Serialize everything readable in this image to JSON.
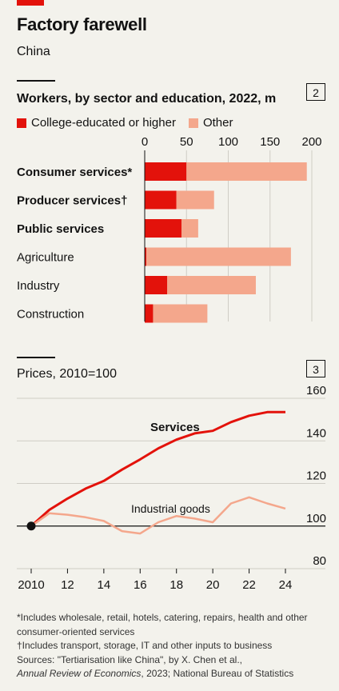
{
  "header": {
    "title": "Factory farewell",
    "subtitle": "China"
  },
  "colors": {
    "red": "#e3120b",
    "salmon": "#f4a78c",
    "text": "#121212",
    "grid": "#cfcdc5"
  },
  "chart_data": [
    {
      "type": "bar",
      "stacked": true,
      "orientation": "horizontal",
      "panel_number": "2",
      "title": "Workers, by sector and education, 2022, m",
      "categories": [
        "Consumer services*",
        "Producer services†",
        "Public services",
        "Agriculture",
        "Industry",
        "Construction"
      ],
      "bold_categories": [
        true,
        true,
        true,
        false,
        false,
        false
      ],
      "series": [
        {
          "name": "College-educated or higher",
          "values": [
            50,
            38,
            44,
            2,
            27,
            10
          ],
          "color": "#e3120b"
        },
        {
          "name": "Other",
          "values": [
            144,
            45,
            20,
            173,
            106,
            65
          ],
          "color": "#f4a78c"
        }
      ],
      "xlim": [
        0,
        200
      ],
      "xticks": [
        0,
        50,
        100,
        150,
        200
      ],
      "legend_position": "top-left"
    },
    {
      "type": "line",
      "panel_number": "3",
      "title": "Prices, 2010=100",
      "x": [
        2010,
        2011,
        2012,
        2013,
        2014,
        2015,
        2016,
        2017,
        2018,
        2019,
        2020,
        2021,
        2022,
        2023,
        2024
      ],
      "xtick_labels": [
        "2010",
        "12",
        "14",
        "16",
        "18",
        "20",
        "22",
        "24"
      ],
      "xtick_values": [
        2010,
        2012,
        2014,
        2016,
        2018,
        2020,
        2022,
        2024
      ],
      "series": [
        {
          "name": "Services",
          "values": [
            100,
            107.6,
            112.9,
            117.6,
            121.2,
            126.5,
            131.3,
            136.5,
            140.6,
            143.5,
            144.7,
            148.8,
            151.8,
            153.5,
            153.5
          ],
          "color": "#e3120b"
        },
        {
          "name": "Industrial goods",
          "values": [
            100,
            106,
            105.3,
            104.1,
            102.4,
            97.6,
            96.5,
            101.8,
            104.7,
            103.5,
            101.8,
            110.6,
            113.5,
            110.6,
            108.2
          ],
          "color": "#f4a78c"
        }
      ],
      "ylim": [
        80,
        160
      ],
      "yticks": [
        80,
        100,
        120,
        140,
        160
      ],
      "yaxis_side": "right",
      "start_marker": {
        "x": 2010,
        "y": 100
      }
    }
  ],
  "footnotes": {
    "note1": "*Includes wholesale, retail, hotels, catering, repairs, health and other consumer-oriented services",
    "note2": "†Includes transport, storage, IT and other inputs to business",
    "sources": "Sources: \"Tertiarisation like China\", by X. Chen et al.,",
    "journal": "Annual Review of Economics",
    "sources_end": ", 2023; National Bureau of Statistics"
  }
}
